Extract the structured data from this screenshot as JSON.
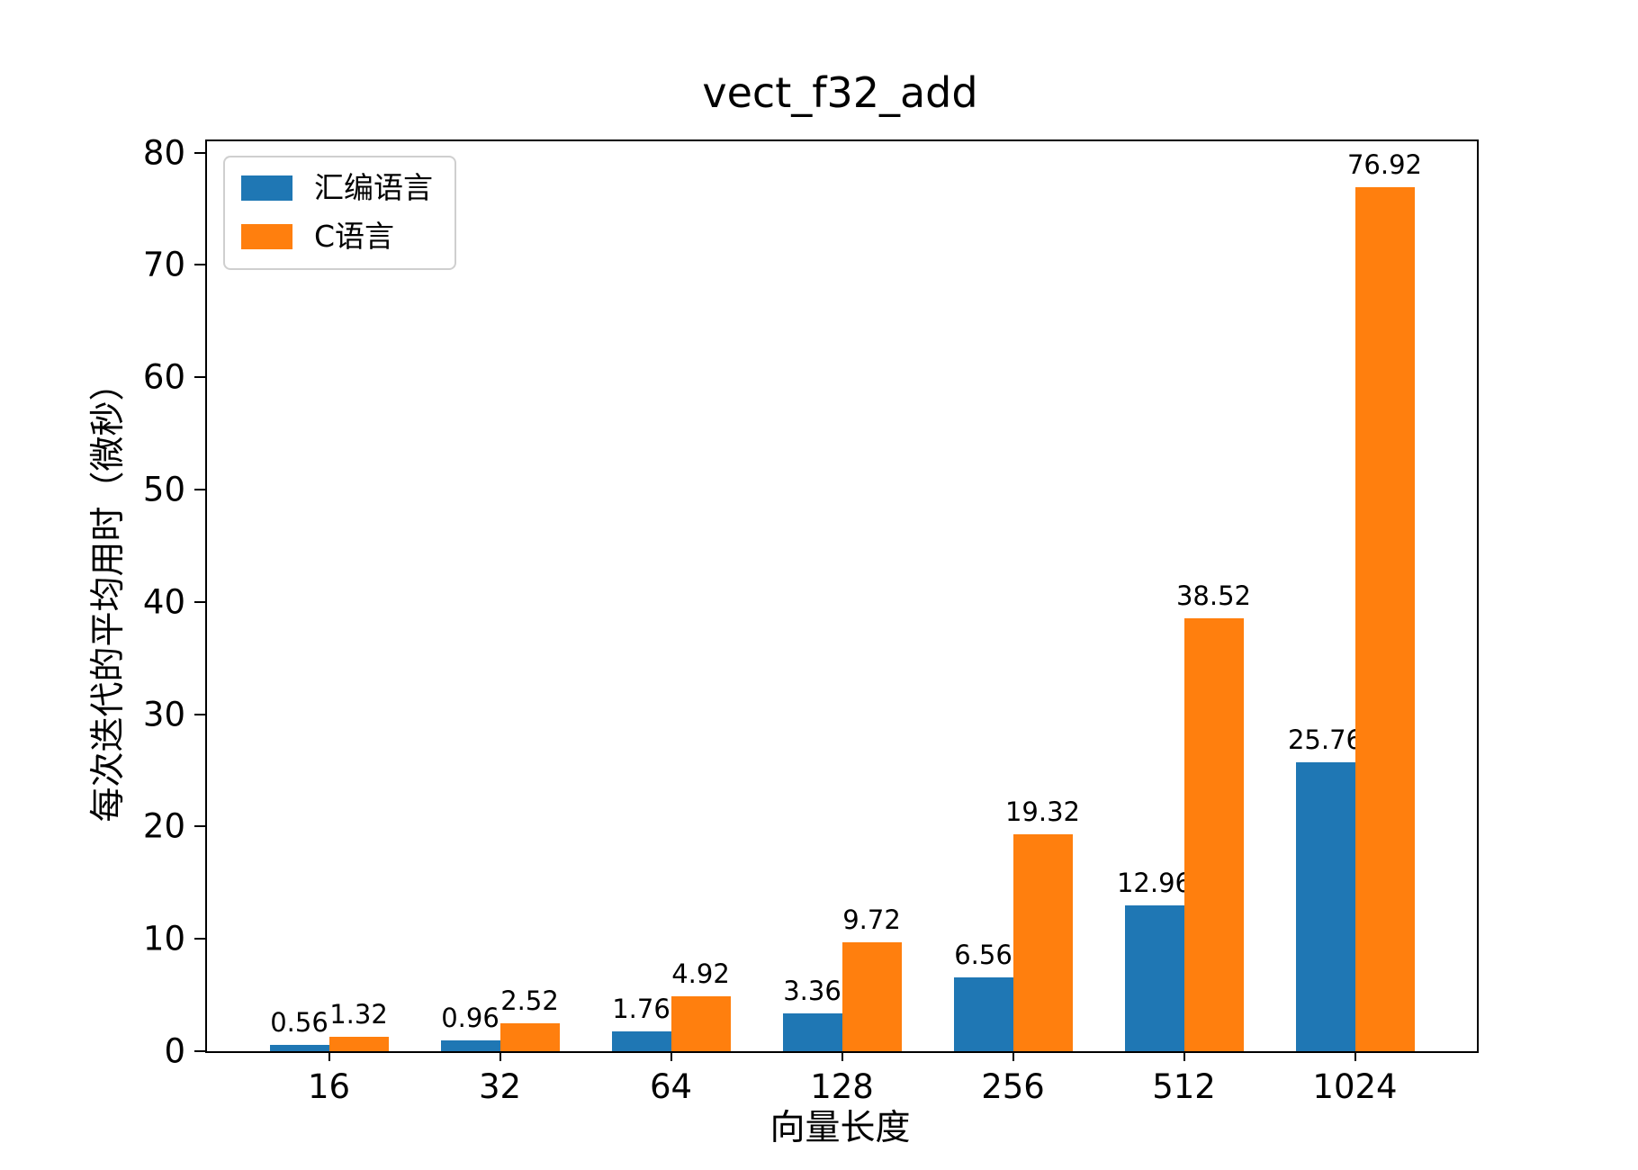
{
  "chart_data": {
    "type": "bar",
    "title": "vect_f32_add",
    "xlabel": "向量长度",
    "ylabel": "每次迭代的平均用时（微秒）",
    "categories": [
      "16",
      "32",
      "64",
      "128",
      "256",
      "512",
      "1024"
    ],
    "series": [
      {
        "name": "汇编语言",
        "color": "#1f77b4",
        "values": [
          0.56,
          0.96,
          1.76,
          3.36,
          6.56,
          12.96,
          25.76
        ],
        "labels": [
          "0.56",
          "0.96",
          "1.76",
          "3.36",
          "6.56",
          "12.96",
          "25.76"
        ]
      },
      {
        "name": "C语言",
        "color": "#ff7f0e",
        "values": [
          1.32,
          2.52,
          4.92,
          9.72,
          19.32,
          38.52,
          76.92
        ],
        "labels": [
          "1.32",
          "2.52",
          "4.92",
          "9.72",
          "19.32",
          "38.52",
          "76.92"
        ]
      }
    ],
    "yticks": [
      0,
      10,
      20,
      30,
      40,
      50,
      60,
      70,
      80
    ],
    "ylim": [
      0,
      81
    ],
    "grid": false,
    "legend_position": "upper left",
    "axis_color": "#000000",
    "background_color": "#ffffff"
  }
}
